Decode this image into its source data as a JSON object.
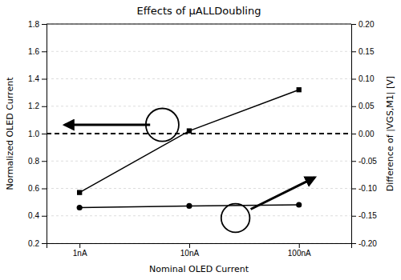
{
  "chart_data": {
    "type": "line",
    "title": "Effects of μALLDoubling",
    "xlabel": "Nominal OLED Current",
    "ylabel": "Normalized OLED Current",
    "y2label": "Difference of |VGS,M1| [V]",
    "log": "x",
    "x": [
      1,
      10,
      100
    ],
    "xlim": [
      0.5,
      300
    ],
    "xticks": [
      {
        "value": 1,
        "label": "1nA"
      },
      {
        "value": 10,
        "label": "10nA"
      },
      {
        "value": 100,
        "label": "100nA"
      }
    ],
    "ylim": [
      0.2,
      1.8
    ],
    "yticks": [
      0.2,
      0.4,
      0.6,
      0.8,
      {
        "value": 1.0,
        "label": "1.0"
      },
      1.2,
      1.4,
      1.6,
      1.8
    ],
    "y2lim": [
      -0.2,
      0.2
    ],
    "y2ticks": [
      {
        "value": -0.2,
        "label": "-0.20"
      },
      -0.15,
      {
        "value": -0.1,
        "label": "-0.10"
      },
      -0.05,
      {
        "value": 0.0,
        "label": "0.00"
      },
      0.05,
      {
        "value": 0.1,
        "label": "0.10"
      },
      0.15,
      {
        "value": 0.2,
        "label": "0.20"
      }
    ],
    "grid": true,
    "series": [
      {
        "values": [
          0.57,
          1.02,
          1.32
        ],
        "color": "#000000",
        "marker": "square",
        "line_style": "solid"
      },
      {
        "values": [
          -0.135,
          -0.132,
          -0.13
        ],
        "color": "#000000",
        "marker": "circle",
        "line_style": "solid",
        "axis": "y2"
      }
    ],
    "reference_lines": [
      {
        "y": 1.0,
        "line_style": "dashed",
        "color": "#000000"
      }
    ]
  }
}
